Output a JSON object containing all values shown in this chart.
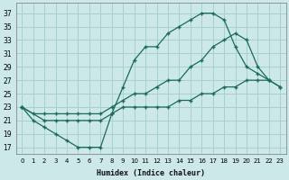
{
  "xlabel": "Humidex (Indice chaleur)",
  "bg_color": "#cce8e8",
  "grid_color": "#a8d0d0",
  "line_color": "#1a6b5a",
  "xlim": [
    -0.5,
    23.5
  ],
  "ylim": [
    16,
    38.5
  ],
  "xticks": [
    0,
    1,
    2,
    3,
    4,
    5,
    6,
    7,
    8,
    9,
    10,
    11,
    12,
    13,
    14,
    15,
    16,
    17,
    18,
    19,
    20,
    21,
    22,
    23
  ],
  "yticks": [
    17,
    19,
    21,
    23,
    25,
    27,
    29,
    31,
    33,
    35,
    37
  ],
  "line1_x": [
    0,
    1,
    2,
    3,
    4,
    5,
    6,
    7,
    8,
    9,
    10,
    11,
    12,
    13,
    14,
    15,
    16,
    17,
    18,
    19,
    20,
    21,
    22,
    23
  ],
  "line1_y": [
    23,
    21,
    20,
    19,
    18,
    17,
    17,
    17,
    22,
    26,
    30,
    32,
    32,
    34,
    35,
    36,
    37,
    37,
    36,
    32,
    29,
    28,
    27,
    26
  ],
  "line2_x": [
    0,
    1,
    2,
    3,
    4,
    5,
    6,
    7,
    8,
    9,
    10,
    11,
    12,
    13,
    14,
    15,
    16,
    17,
    18,
    19,
    20,
    21,
    22
  ],
  "line2_y": [
    23,
    22,
    22,
    22,
    22,
    22,
    22,
    22,
    23,
    24,
    25,
    25,
    26,
    27,
    27,
    29,
    30,
    32,
    33,
    34,
    33,
    29,
    27
  ],
  "line3_x": [
    0,
    2,
    3,
    4,
    5,
    6,
    7,
    8,
    9,
    10,
    11,
    12,
    13,
    14,
    15,
    16,
    17,
    18,
    19,
    20,
    21,
    22,
    23
  ],
  "line3_y": [
    23,
    21,
    21,
    21,
    21,
    21,
    21,
    22,
    23,
    23,
    23,
    23,
    23,
    24,
    24,
    25,
    25,
    26,
    26,
    27,
    27,
    27,
    26
  ]
}
